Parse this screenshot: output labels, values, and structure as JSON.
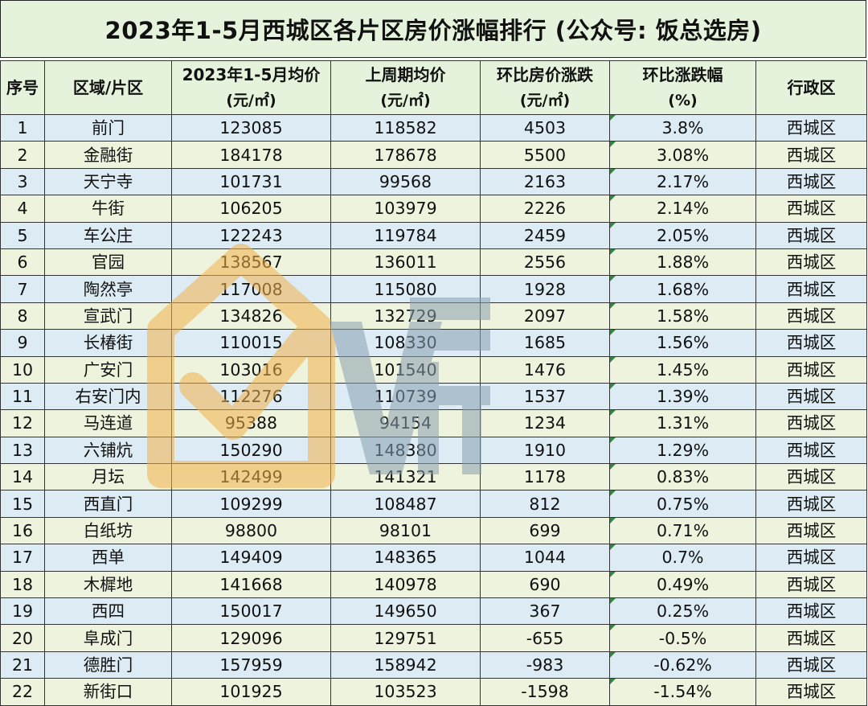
{
  "title": "2023年1-5月西城区各片区房价涨幅排行 (公众号: 饭总选房)",
  "watermark_text": "V房",
  "headers": [
    {
      "line1": "序号",
      "line2": ""
    },
    {
      "line1": "区域/片区",
      "line2": ""
    },
    {
      "line1": "2023年1-5月均价",
      "line2": "(元/㎡)"
    },
    {
      "line1": "上周期均价",
      "line2": "(元/㎡)"
    },
    {
      "line1": "环比房价涨跌",
      "line2": "(元/㎡)"
    },
    {
      "line1": "环比涨跌幅",
      "line2": "(%)"
    },
    {
      "line1": "行政区",
      "line2": ""
    }
  ],
  "rows": [
    [
      "1",
      "前门",
      "123085",
      "118582",
      "4503",
      "3.8%",
      "西城区"
    ],
    [
      "2",
      "金融街",
      "184178",
      "178678",
      "5500",
      "3.08%",
      "西城区"
    ],
    [
      "3",
      "天宁寺",
      "101731",
      "99568",
      "2163",
      "2.17%",
      "西城区"
    ],
    [
      "4",
      "牛街",
      "106205",
      "103979",
      "2226",
      "2.14%",
      "西城区"
    ],
    [
      "5",
      "车公庄",
      "122243",
      "119784",
      "2459",
      "2.05%",
      "西城区"
    ],
    [
      "6",
      "官园",
      "138567",
      "136011",
      "2556",
      "1.88%",
      "西城区"
    ],
    [
      "7",
      "陶然亭",
      "117008",
      "115080",
      "1928",
      "1.68%",
      "西城区"
    ],
    [
      "8",
      "宣武门",
      "134826",
      "132729",
      "2097",
      "1.58%",
      "西城区"
    ],
    [
      "9",
      "长椿街",
      "110015",
      "108330",
      "1685",
      "1.56%",
      "西城区"
    ],
    [
      "10",
      "广安门",
      "103016",
      "101540",
      "1476",
      "1.45%",
      "西城区"
    ],
    [
      "11",
      "右安门内",
      "112276",
      "110739",
      "1537",
      "1.39%",
      "西城区"
    ],
    [
      "12",
      "马连道",
      "95388",
      "94154",
      "1234",
      "1.31%",
      "西城区"
    ],
    [
      "13",
      "六铺炕",
      "150290",
      "148380",
      "1910",
      "1.29%",
      "西城区"
    ],
    [
      "14",
      "月坛",
      "142499",
      "141321",
      "1178",
      "0.83%",
      "西城区"
    ],
    [
      "15",
      "西直门",
      "109299",
      "108487",
      "812",
      "0.75%",
      "西城区"
    ],
    [
      "16",
      "白纸坊",
      "98800",
      "98101",
      "699",
      "0.71%",
      "西城区"
    ],
    [
      "17",
      "西单",
      "149409",
      "148365",
      "1044",
      "0.7%",
      "西城区"
    ],
    [
      "18",
      "木樨地",
      "141668",
      "140978",
      "690",
      "0.49%",
      "西城区"
    ],
    [
      "19",
      "西四",
      "150017",
      "149650",
      "367",
      "0.25%",
      "西城区"
    ],
    [
      "20",
      "阜成门",
      "129096",
      "129751",
      "-655",
      "-0.5%",
      "西城区"
    ],
    [
      "21",
      "德胜门",
      "157959",
      "158942",
      "-983",
      "-0.62%",
      "西城区"
    ],
    [
      "22",
      "新街口",
      "101925",
      "103523",
      "-1598",
      "-1.54%",
      "西城区"
    ]
  ],
  "colors": {
    "header_bg": "#e5f3dc",
    "row_odd_bg": "#dcebf4",
    "row_even_bg": "#eef3dd",
    "flag_green": "#2e8b3d",
    "watermark_orange": "#f2b24a",
    "watermark_gray": "#8aa0b0"
  }
}
